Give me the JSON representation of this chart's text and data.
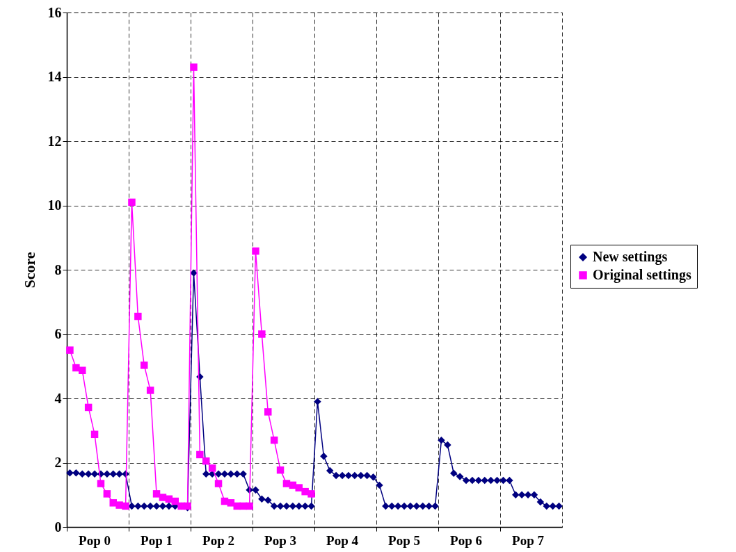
{
  "chart_data": {
    "type": "line",
    "ylabel": "Score",
    "ylim": [
      0,
      16
    ],
    "yticks": [
      0,
      2,
      4,
      6,
      8,
      10,
      12,
      14,
      16
    ],
    "grid": true,
    "legend": "right",
    "line_style": "solid",
    "categories": [
      null,
      null,
      null,
      null,
      "Pop 0",
      null,
      null,
      null,
      null,
      null,
      null,
      null,
      null,
      null,
      "Pop 1",
      null,
      null,
      null,
      null,
      null,
      null,
      null,
      null,
      null,
      "Pop 2",
      null,
      null,
      null,
      null,
      null,
      null,
      null,
      null,
      null,
      "Pop 3",
      null,
      null,
      null,
      null,
      null,
      null,
      null,
      null,
      null,
      "Pop 4",
      null,
      null,
      null,
      null,
      null,
      null,
      null,
      null,
      null,
      "Pop 5",
      null,
      null,
      null,
      null,
      null,
      null,
      null,
      null,
      null,
      "Pop 6",
      null,
      null,
      null,
      null,
      null,
      null,
      null,
      null,
      null,
      "Pop 7",
      null,
      null,
      null,
      null,
      null
    ],
    "series": [
      {
        "name": "New settings",
        "color": "#000080",
        "marker": "diamond",
        "values": [
          1.68,
          1.68,
          1.65,
          1.65,
          1.65,
          1.65,
          1.65,
          1.65,
          1.65,
          1.65,
          0.65,
          0.65,
          0.65,
          0.65,
          0.65,
          0.65,
          0.65,
          0.65,
          0.65,
          0.6,
          7.9,
          4.67,
          1.65,
          1.65,
          1.65,
          1.65,
          1.65,
          1.65,
          1.65,
          1.15,
          1.15,
          0.87,
          0.83,
          0.65,
          0.65,
          0.65,
          0.65,
          0.65,
          0.65,
          0.65,
          3.9,
          2.2,
          1.75,
          1.6,
          1.6,
          1.6,
          1.6,
          1.6,
          1.6,
          1.55,
          1.3,
          0.65,
          0.65,
          0.65,
          0.65,
          0.65,
          0.65,
          0.65,
          0.65,
          0.65,
          2.7,
          2.55,
          1.67,
          1.57,
          1.45,
          1.45,
          1.45,
          1.45,
          1.45,
          1.45,
          1.45,
          1.45,
          1.0,
          1.0,
          1.0,
          1.0,
          0.78,
          0.65,
          0.65,
          0.65
        ]
      },
      {
        "name": "Original settings",
        "color": "#ff00ff",
        "marker": "square",
        "values": [
          5.5,
          4.95,
          4.87,
          3.72,
          2.88,
          1.35,
          1.03,
          0.75,
          0.68,
          0.65,
          10.1,
          6.55,
          5.03,
          4.25,
          1.03,
          0.92,
          0.87,
          0.8,
          0.65,
          0.65,
          14.3,
          2.25,
          2.05,
          1.83,
          1.35,
          0.8,
          0.75,
          0.65,
          0.65,
          0.65,
          8.58,
          6.0,
          3.58,
          2.7,
          1.77,
          1.35,
          1.3,
          1.22,
          1.1,
          1.03,
          null,
          null,
          null,
          null,
          null,
          null,
          null,
          null,
          null,
          null,
          null,
          null,
          null,
          null,
          null,
          null,
          null,
          null,
          null,
          null,
          null,
          null,
          null,
          null,
          null,
          null,
          null,
          null,
          null,
          null,
          null,
          null,
          null,
          null,
          null,
          null,
          null,
          null,
          null,
          null
        ]
      }
    ]
  }
}
